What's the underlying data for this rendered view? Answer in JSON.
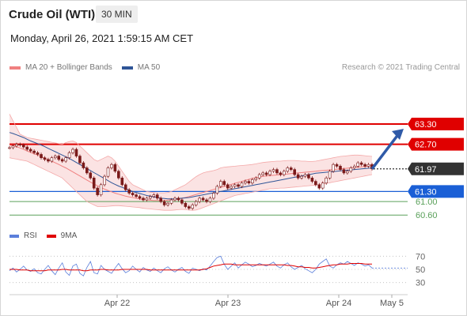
{
  "header": {
    "title": "Crude Oil (WTI)",
    "interval": "30 MIN"
  },
  "timestamp": "Monday, April 26, 2021 1:59:15 AM CET",
  "legend": {
    "items": [
      {
        "label": "MA 20 + Bollinger Bands",
        "color": "#f08080"
      },
      {
        "label": "MA 50",
        "color": "#2f5597"
      }
    ],
    "credit": "Research © 2021 Trading Central"
  },
  "rsi_legend": {
    "items": [
      {
        "label": "RSI",
        "color": "#5b7fdb"
      },
      {
        "label": "9MA",
        "color": "#e00000"
      }
    ]
  },
  "colors": {
    "resistance": "#e00000",
    "support_blue": "#1a5fd6",
    "support_green": "#5aa05a",
    "price_tag": "#333333",
    "arrow": "#2f5aa8",
    "candle": "#7a1a1a",
    "bollinger_fill": "#fbe0e0"
  },
  "chart_data": [
    {
      "type": "line",
      "series_kind": "candlestick",
      "x_ticks": [
        "Apr 22",
        "Apr 23",
        "Apr 24",
        "May 5"
      ],
      "ylim": [
        60.3,
        63.7
      ],
      "levels": [
        {
          "value": 63.3,
          "label": "63.30",
          "kind": "resistance"
        },
        {
          "value": 62.7,
          "label": "62.70",
          "kind": "resistance"
        },
        {
          "value": 61.97,
          "label": "61.97",
          "kind": "current_price"
        },
        {
          "value": 61.3,
          "label": "61.30",
          "kind": "support_primary"
        },
        {
          "value": 61.0,
          "label": "61.00",
          "kind": "support"
        },
        {
          "value": 60.6,
          "label": "60.60",
          "kind": "support"
        }
      ],
      "close": [
        62.6,
        62.65,
        62.7,
        62.68,
        62.62,
        62.55,
        62.5,
        62.45,
        62.4,
        62.3,
        62.25,
        62.2,
        62.3,
        62.35,
        62.25,
        62.2,
        62.3,
        62.45,
        62.55,
        62.35,
        62.15,
        62.0,
        61.85,
        61.7,
        61.4,
        61.2,
        61.5,
        61.75,
        62.0,
        62.1,
        61.9,
        61.7,
        61.5,
        61.35,
        61.25,
        61.2,
        61.15,
        61.1,
        61.05,
        61.1,
        61.15,
        61.2,
        61.1,
        61.0,
        60.9,
        60.95,
        61.05,
        61.1,
        61.05,
        60.95,
        60.85,
        60.8,
        60.9,
        61.0,
        61.1,
        61.05,
        61.0,
        61.1,
        61.25,
        61.45,
        61.6,
        61.5,
        61.4,
        61.45,
        61.5,
        61.45,
        61.55,
        61.6,
        61.55,
        61.65,
        61.7,
        61.8,
        61.85,
        61.8,
        61.9,
        61.95,
        61.85,
        61.8,
        61.9,
        62.0,
        61.95,
        61.8,
        61.7,
        61.75,
        61.8,
        61.7,
        61.6,
        61.5,
        61.4,
        61.55,
        61.7,
        61.9,
        62.1,
        62.05,
        61.95,
        61.85,
        61.9,
        62.0,
        62.05,
        62.15,
        62.1,
        62.05,
        62.1,
        61.97
      ],
      "ma20": [
        62.68,
        62.66,
        62.63,
        62.59,
        62.55,
        62.5,
        62.46,
        62.42,
        62.38,
        62.33,
        62.29,
        62.24,
        62.2,
        62.15,
        62.1,
        62.05,
        62.0,
        61.94,
        61.88,
        61.82,
        61.76,
        61.7,
        61.64,
        61.58,
        61.52,
        61.47,
        61.42,
        61.37,
        61.33,
        61.29,
        61.25,
        61.22,
        61.19,
        61.16,
        61.14,
        61.12,
        61.1,
        61.08,
        61.06,
        61.05,
        61.04,
        61.03,
        61.03,
        61.03,
        61.03,
        61.04,
        61.05,
        61.06,
        61.08,
        61.1,
        61.12,
        61.15,
        61.18,
        61.21,
        61.24,
        61.27,
        61.3,
        61.33,
        61.36,
        61.39,
        61.42,
        61.45,
        61.48,
        61.51,
        61.54,
        61.57,
        61.6,
        61.63,
        61.66,
        61.69,
        61.71,
        61.73,
        61.75,
        61.76,
        61.77,
        61.78,
        61.79,
        61.8,
        61.81,
        61.82,
        61.83,
        61.84,
        61.85,
        61.86,
        61.87,
        61.88,
        61.89,
        61.9,
        61.91,
        61.92,
        61.93,
        61.94,
        61.95,
        61.96,
        61.97,
        61.98,
        61.99,
        62.0,
        62.01,
        62.02,
        62.03,
        62.04,
        62.05,
        62.06
      ],
      "ma50": [
        63.05,
        63.02,
        62.98,
        62.94,
        62.9,
        62.85,
        62.8,
        62.76,
        62.72,
        62.68,
        62.63,
        62.58,
        62.53,
        62.48,
        62.43,
        62.38,
        62.33,
        62.28,
        62.22,
        62.16,
        62.1,
        62.04,
        61.98,
        61.92,
        61.86,
        61.8,
        61.74,
        61.68,
        61.62,
        61.56,
        61.51,
        61.46,
        61.42,
        61.38,
        61.34,
        61.3,
        61.27,
        61.24,
        61.21,
        61.18,
        61.16,
        61.14,
        61.12,
        61.1,
        61.09,
        61.08,
        61.08,
        61.08,
        61.09,
        61.1,
        61.11,
        61.12,
        61.14,
        61.16,
        61.18,
        61.2,
        61.22,
        61.24,
        61.26,
        61.28,
        61.3,
        61.32,
        61.34,
        61.36,
        61.38,
        61.4,
        61.42,
        61.44,
        61.46,
        61.48,
        61.5,
        61.52,
        61.54,
        61.56,
        61.58,
        61.6,
        61.62,
        61.64,
        61.66,
        61.68,
        61.7,
        61.72,
        61.74,
        61.76,
        61.78,
        61.8,
        61.82,
        61.84,
        61.85,
        61.86,
        61.87,
        61.88,
        61.89,
        61.9,
        61.91,
        61.92,
        61.93,
        61.94,
        61.95,
        61.96,
        61.97,
        61.98,
        61.99,
        62.0
      ],
      "bollinger_upper": [
        63.6,
        63.4,
        63.2,
        63.0,
        62.95,
        62.9,
        62.88,
        62.86,
        62.84,
        62.82,
        62.8,
        62.78,
        62.76,
        62.74,
        62.72,
        62.7,
        62.75,
        62.78,
        62.8,
        62.75,
        62.65,
        62.55,
        62.45,
        62.35,
        62.25,
        62.2,
        62.25,
        62.3,
        62.35,
        62.3,
        62.2,
        62.05,
        61.9,
        61.75,
        61.6,
        61.5,
        61.45,
        61.4,
        61.35,
        61.3,
        61.28,
        61.27,
        61.26,
        61.26,
        61.26,
        61.27,
        61.3,
        61.35,
        61.4,
        61.45,
        61.5,
        61.58,
        61.66,
        61.74,
        61.8,
        61.85,
        61.88,
        61.9,
        61.92,
        61.95,
        62.0,
        62.02,
        62.03,
        62.04,
        62.05,
        62.06,
        62.07,
        62.08,
        62.09,
        62.1,
        62.12,
        62.14,
        62.16,
        62.17,
        62.18,
        62.19,
        62.2,
        62.2,
        62.21,
        62.22,
        62.22,
        62.22,
        62.21,
        62.2,
        62.2,
        62.19,
        62.19,
        62.2,
        62.22,
        62.24,
        62.26,
        62.28,
        62.3,
        62.32,
        62.34,
        62.35,
        62.36,
        62.37,
        62.38,
        62.38,
        62.37,
        62.36,
        62.35,
        62.34
      ],
      "bollinger_lower": [
        62.3,
        62.28,
        62.26,
        62.24,
        62.22,
        62.2,
        62.15,
        62.1,
        62.05,
        62.0,
        61.95,
        61.9,
        61.85,
        61.8,
        61.75,
        61.7,
        61.6,
        61.5,
        61.4,
        61.3,
        61.2,
        61.1,
        61.0,
        60.95,
        60.9,
        60.85,
        60.85,
        60.85,
        60.86,
        60.87,
        60.88,
        60.88,
        60.87,
        60.86,
        60.85,
        60.84,
        60.83,
        60.82,
        60.8,
        60.79,
        60.78,
        60.77,
        60.76,
        60.75,
        60.74,
        60.74,
        60.74,
        60.75,
        60.76,
        60.77,
        60.76,
        60.75,
        60.74,
        60.75,
        60.78,
        60.82,
        60.86,
        60.9,
        60.94,
        60.98,
        61.02,
        61.06,
        61.1,
        61.14,
        61.18,
        61.2,
        61.22,
        61.24,
        61.26,
        61.28,
        61.3,
        61.32,
        61.34,
        61.36,
        61.38,
        61.38,
        61.39,
        61.4,
        61.4,
        61.41,
        61.42,
        61.43,
        61.44,
        61.45,
        61.46,
        61.47,
        61.48,
        61.49,
        61.5,
        61.52,
        61.54,
        61.56,
        61.58,
        61.6,
        61.62,
        61.64,
        61.66,
        61.68,
        61.7,
        61.72,
        61.74,
        61.76,
        61.78,
        61.8
      ],
      "forecast": {
        "from": 61.97,
        "to": 63.3
      }
    },
    {
      "type": "line",
      "title": "",
      "ylim": [
        20,
        80
      ],
      "y_ticks": [
        70,
        50,
        30
      ],
      "series": [
        {
          "name": "RSI",
          "values": [
            48,
            52,
            46,
            50,
            55,
            49,
            47,
            51,
            45,
            43,
            50,
            56,
            48,
            42,
            52,
            60,
            46,
            41,
            55,
            58,
            44,
            40,
            53,
            62,
            45,
            43,
            56,
            50,
            47,
            44,
            52,
            59,
            51,
            45,
            48,
            55,
            50,
            46,
            53,
            49,
            47,
            52,
            48,
            45,
            51,
            54,
            49,
            46,
            50,
            53,
            47,
            44,
            52,
            50,
            48,
            51,
            49,
            55,
            62,
            68,
            70,
            58,
            50,
            55,
            60,
            52,
            57,
            61,
            58,
            54,
            56,
            59,
            57,
            55,
            58,
            61,
            55,
            52,
            57,
            60,
            54,
            50,
            53,
            56,
            51,
            48,
            45,
            50,
            58,
            62,
            66,
            55,
            52,
            57,
            60,
            58,
            62,
            59,
            56,
            60,
            58,
            55,
            57,
            52
          ]
        },
        {
          "name": "9MA",
          "values": [
            50,
            50,
            50,
            49,
            49,
            49,
            48,
            48,
            48,
            48,
            48,
            49,
            49,
            49,
            49,
            50,
            50,
            49,
            49,
            49,
            49,
            48,
            48,
            49,
            49,
            49,
            50,
            50,
            49,
            49,
            49,
            49,
            50,
            50,
            50,
            50,
            50,
            50,
            50,
            50,
            49,
            49,
            49,
            49,
            49,
            49,
            49,
            49,
            49,
            49,
            49,
            49,
            49,
            49,
            49,
            50,
            51,
            53,
            55,
            56,
            57,
            58,
            58,
            58,
            57,
            57,
            57,
            57,
            57,
            57,
            57,
            57,
            57,
            57,
            57,
            57,
            57,
            57,
            57,
            56,
            56,
            55,
            54,
            54,
            53,
            53,
            52,
            52,
            53,
            54,
            55,
            56,
            57,
            57,
            58,
            58,
            58,
            59,
            59,
            59,
            59,
            58,
            58,
            58
          ]
        }
      ]
    }
  ]
}
